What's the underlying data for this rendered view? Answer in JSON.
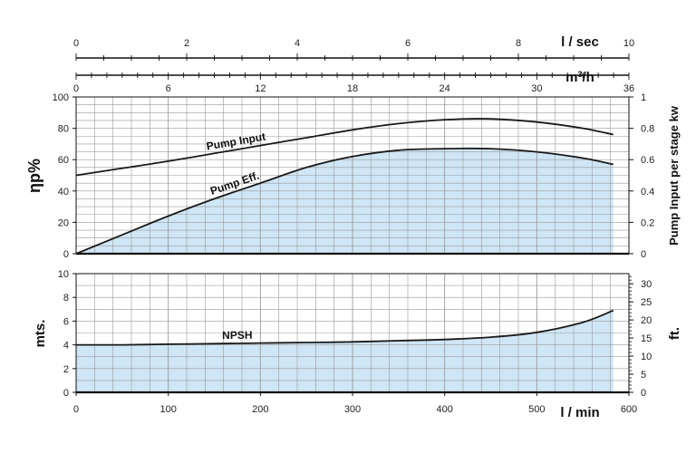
{
  "chart_data": [
    {
      "type": "line",
      "title": "",
      "xlabel": "l / min",
      "ylabel": "ηp%",
      "y2label": "Pump Input per stage kw",
      "xlim": [
        0,
        600
      ],
      "ylim": [
        0,
        100
      ],
      "y2lim": [
        0,
        1
      ],
      "x_ticks": [
        0,
        100,
        200,
        300,
        400,
        500,
        600
      ],
      "y_ticks": [
        0,
        20,
        40,
        60,
        80,
        100
      ],
      "y2_ticks": [
        0,
        0.2,
        0.4,
        0.6,
        0.8,
        1
      ],
      "grid": true,
      "top_axes": [
        {
          "unit": "l / sec",
          "ticks": [
            0,
            2,
            4,
            6,
            8,
            10
          ],
          "range": [
            0,
            10
          ]
        },
        {
          "unit": "m3/h",
          "ticks": [
            0,
            6,
            12,
            18,
            24,
            30,
            36
          ],
          "range": [
            0,
            36
          ]
        }
      ],
      "series": [
        {
          "name": "Pump Input",
          "axis": "right",
          "x": [
            0,
            50,
            100,
            150,
            200,
            250,
            300,
            350,
            400,
            450,
            500,
            550,
            583
          ],
          "y": [
            0.5,
            0.545,
            0.59,
            0.64,
            0.69,
            0.74,
            0.79,
            0.83,
            0.855,
            0.86,
            0.84,
            0.8,
            0.76
          ],
          "fill": false
        },
        {
          "name": "Pump Eff.",
          "axis": "left",
          "x": [
            0,
            50,
            100,
            150,
            200,
            250,
            300,
            350,
            400,
            450,
            500,
            550,
            583
          ],
          "y": [
            0,
            12,
            24,
            35,
            45,
            55,
            62,
            66,
            67,
            67,
            65,
            61,
            57
          ],
          "fill": true
        }
      ]
    },
    {
      "type": "area",
      "title": "",
      "xlabel": "l / min",
      "ylabel": "mts.",
      "y2label": "ft.",
      "xlim": [
        0,
        600
      ],
      "ylim": [
        0,
        10
      ],
      "y2lim": [
        0,
        32.8
      ],
      "x_ticks": [
        0,
        100,
        200,
        300,
        400,
        500,
        600
      ],
      "y_ticks": [
        0,
        2,
        4,
        6,
        8,
        10
      ],
      "y2_ticks": [
        0,
        5,
        10,
        15,
        20,
        25,
        30
      ],
      "grid": true,
      "series": [
        {
          "name": "NPSH",
          "axis": "left",
          "x": [
            0,
            50,
            100,
            150,
            200,
            250,
            300,
            350,
            400,
            450,
            500,
            550,
            583
          ],
          "y": [
            4.0,
            4.0,
            4.05,
            4.1,
            4.15,
            4.2,
            4.25,
            4.35,
            4.45,
            4.65,
            5.05,
            5.9,
            6.9
          ],
          "fill": true
        }
      ]
    }
  ],
  "colors": {
    "fill": "#cfe6f6",
    "grid": "#9a9a9a",
    "curve": "#1a1a1a",
    "axis": "#111111"
  }
}
